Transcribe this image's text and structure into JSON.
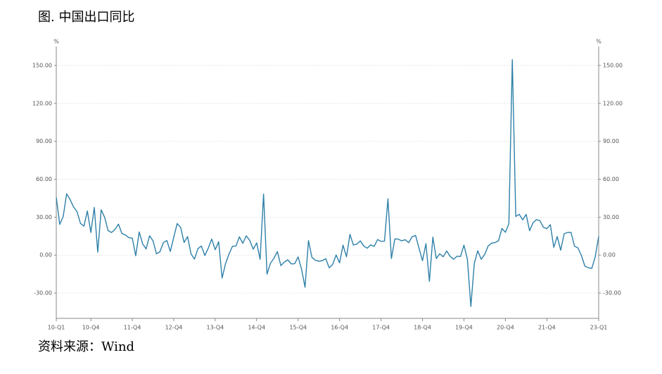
{
  "chart_data": {
    "type": "line",
    "title": "图. 中国出口同比",
    "source": "资料来源：Wind",
    "y_unit": "%",
    "y2_unit": "%",
    "categories": [
      "10-Q1",
      null,
      null,
      null,
      null,
      null,
      null,
      null,
      null,
      null,
      "10-Q4",
      null,
      null,
      null,
      null,
      null,
      null,
      null,
      null,
      null,
      null,
      null,
      "11-Q4",
      null,
      null,
      null,
      null,
      null,
      null,
      null,
      null,
      null,
      null,
      null,
      "12-Q4",
      null,
      null,
      null,
      null,
      null,
      null,
      null,
      null,
      null,
      null,
      null,
      "13-Q4",
      null,
      null,
      null,
      null,
      null,
      null,
      null,
      null,
      null,
      null,
      null,
      "14-Q4",
      null,
      null,
      null,
      null,
      null,
      null,
      null,
      null,
      null,
      null,
      null,
      "15-Q4",
      null,
      null,
      null,
      null,
      null,
      null,
      null,
      null,
      null,
      null,
      null,
      "16-Q4",
      null,
      null,
      null,
      null,
      null,
      null,
      null,
      null,
      null,
      null,
      null,
      "17-Q4",
      null,
      null,
      null,
      null,
      null,
      null,
      null,
      null,
      null,
      null,
      null,
      "18-Q4",
      null,
      null,
      null,
      null,
      null,
      null,
      null,
      null,
      null,
      null,
      null,
      "19-Q4",
      null,
      null,
      null,
      null,
      null,
      null,
      null,
      null,
      null,
      null,
      null,
      "20-Q4",
      null,
      null,
      null,
      null,
      null,
      null,
      null,
      null,
      null,
      null,
      null,
      "21-Q4",
      null,
      null,
      null,
      null,
      null,
      null,
      null,
      null,
      null,
      null,
      null,
      null,
      null,
      null,
      "23-Q1"
    ],
    "series": [
      {
        "name": "中国出口同比",
        "color": "#2e80a8",
        "values": [
          45.7,
          24.3,
          30.5,
          48.5,
          43.9,
          38.1,
          34.4,
          25.1,
          22.9,
          34.9,
          17.9,
          37.7,
          2.4,
          35.8,
          29.9,
          19.4,
          17.9,
          20.4,
          24.5,
          17.1,
          15.9,
          13.8,
          13.4,
          -0.5,
          18.4,
          8.9,
          4.9,
          15.3,
          11.3,
          1.0,
          2.7,
          9.9,
          11.6,
          2.9,
          14.1,
          25.0,
          21.8,
          10.0,
          14.7,
          1.0,
          -3.1,
          5.1,
          7.2,
          -0.3,
          5.6,
          12.7,
          4.3,
          10.6,
          -18.1,
          -6.6,
          0.9,
          7.0,
          7.2,
          14.5,
          9.4,
          15.3,
          11.6,
          4.7,
          9.7,
          -3.3,
          48.3,
          -15.0,
          -6.4,
          -2.5,
          2.8,
          -8.3,
          -5.5,
          -3.7,
          -6.9,
          -6.8,
          -1.4,
          -11.2,
          -25.4,
          11.5,
          -1.8,
          -4.1,
          -4.8,
          -4.4,
          -2.8,
          -10.0,
          -7.3,
          0.1,
          -6.1,
          7.9,
          -1.3,
          16.4,
          8.0,
          8.7,
          11.3,
          7.2,
          5.5,
          8.1,
          6.9,
          12.3,
          10.9,
          11.1,
          44.5,
          -2.7,
          12.9,
          12.6,
          11.3,
          12.2,
          9.8,
          14.5,
          15.6,
          5.4,
          -4.4,
          9.1,
          -20.7,
          14.2,
          -2.7,
          1.1,
          -1.3,
          3.3,
          -1.0,
          -3.2,
          -0.9,
          -1.1,
          7.9,
          -3.3,
          -40.6,
          -6.6,
          3.5,
          -3.3,
          0.5,
          7.2,
          9.5,
          9.9,
          11.4,
          21.1,
          18.1,
          24.7,
          154.6,
          30.6,
          32.3,
          27.9,
          32.2,
          19.3,
          25.6,
          28.1,
          27.1,
          22.0,
          20.9,
          24.1,
          6.2,
          14.7,
          3.9,
          16.9,
          17.9,
          18.0,
          7.1,
          5.7,
          -0.3,
          -8.7,
          -9.9,
          -10.5,
          -1.3,
          14.8
        ]
      }
    ],
    "ylim": [
      -50,
      165
    ],
    "yticks": [
      {
        "value": -30,
        "label": "-30.00"
      },
      {
        "value": 0,
        "label": "0.00"
      },
      {
        "value": 30,
        "label": "30.00"
      },
      {
        "value": 60,
        "label": "60.00"
      },
      {
        "value": 90,
        "label": "90.00"
      },
      {
        "value": 120,
        "label": "120.00"
      },
      {
        "value": 150,
        "label": "150.00"
      }
    ],
    "y2lim": [
      -50,
      165
    ],
    "y2ticks": [
      {
        "value": -30,
        "label": "-30.00"
      },
      {
        "value": 0,
        "label": "0.00"
      },
      {
        "value": 30,
        "label": "30.00"
      },
      {
        "value": 60,
        "label": "60.00"
      },
      {
        "value": 90,
        "label": "90.00"
      },
      {
        "value": 120,
        "label": "120.00"
      },
      {
        "value": 150,
        "label": "150.00"
      }
    ],
    "grid": true
  }
}
